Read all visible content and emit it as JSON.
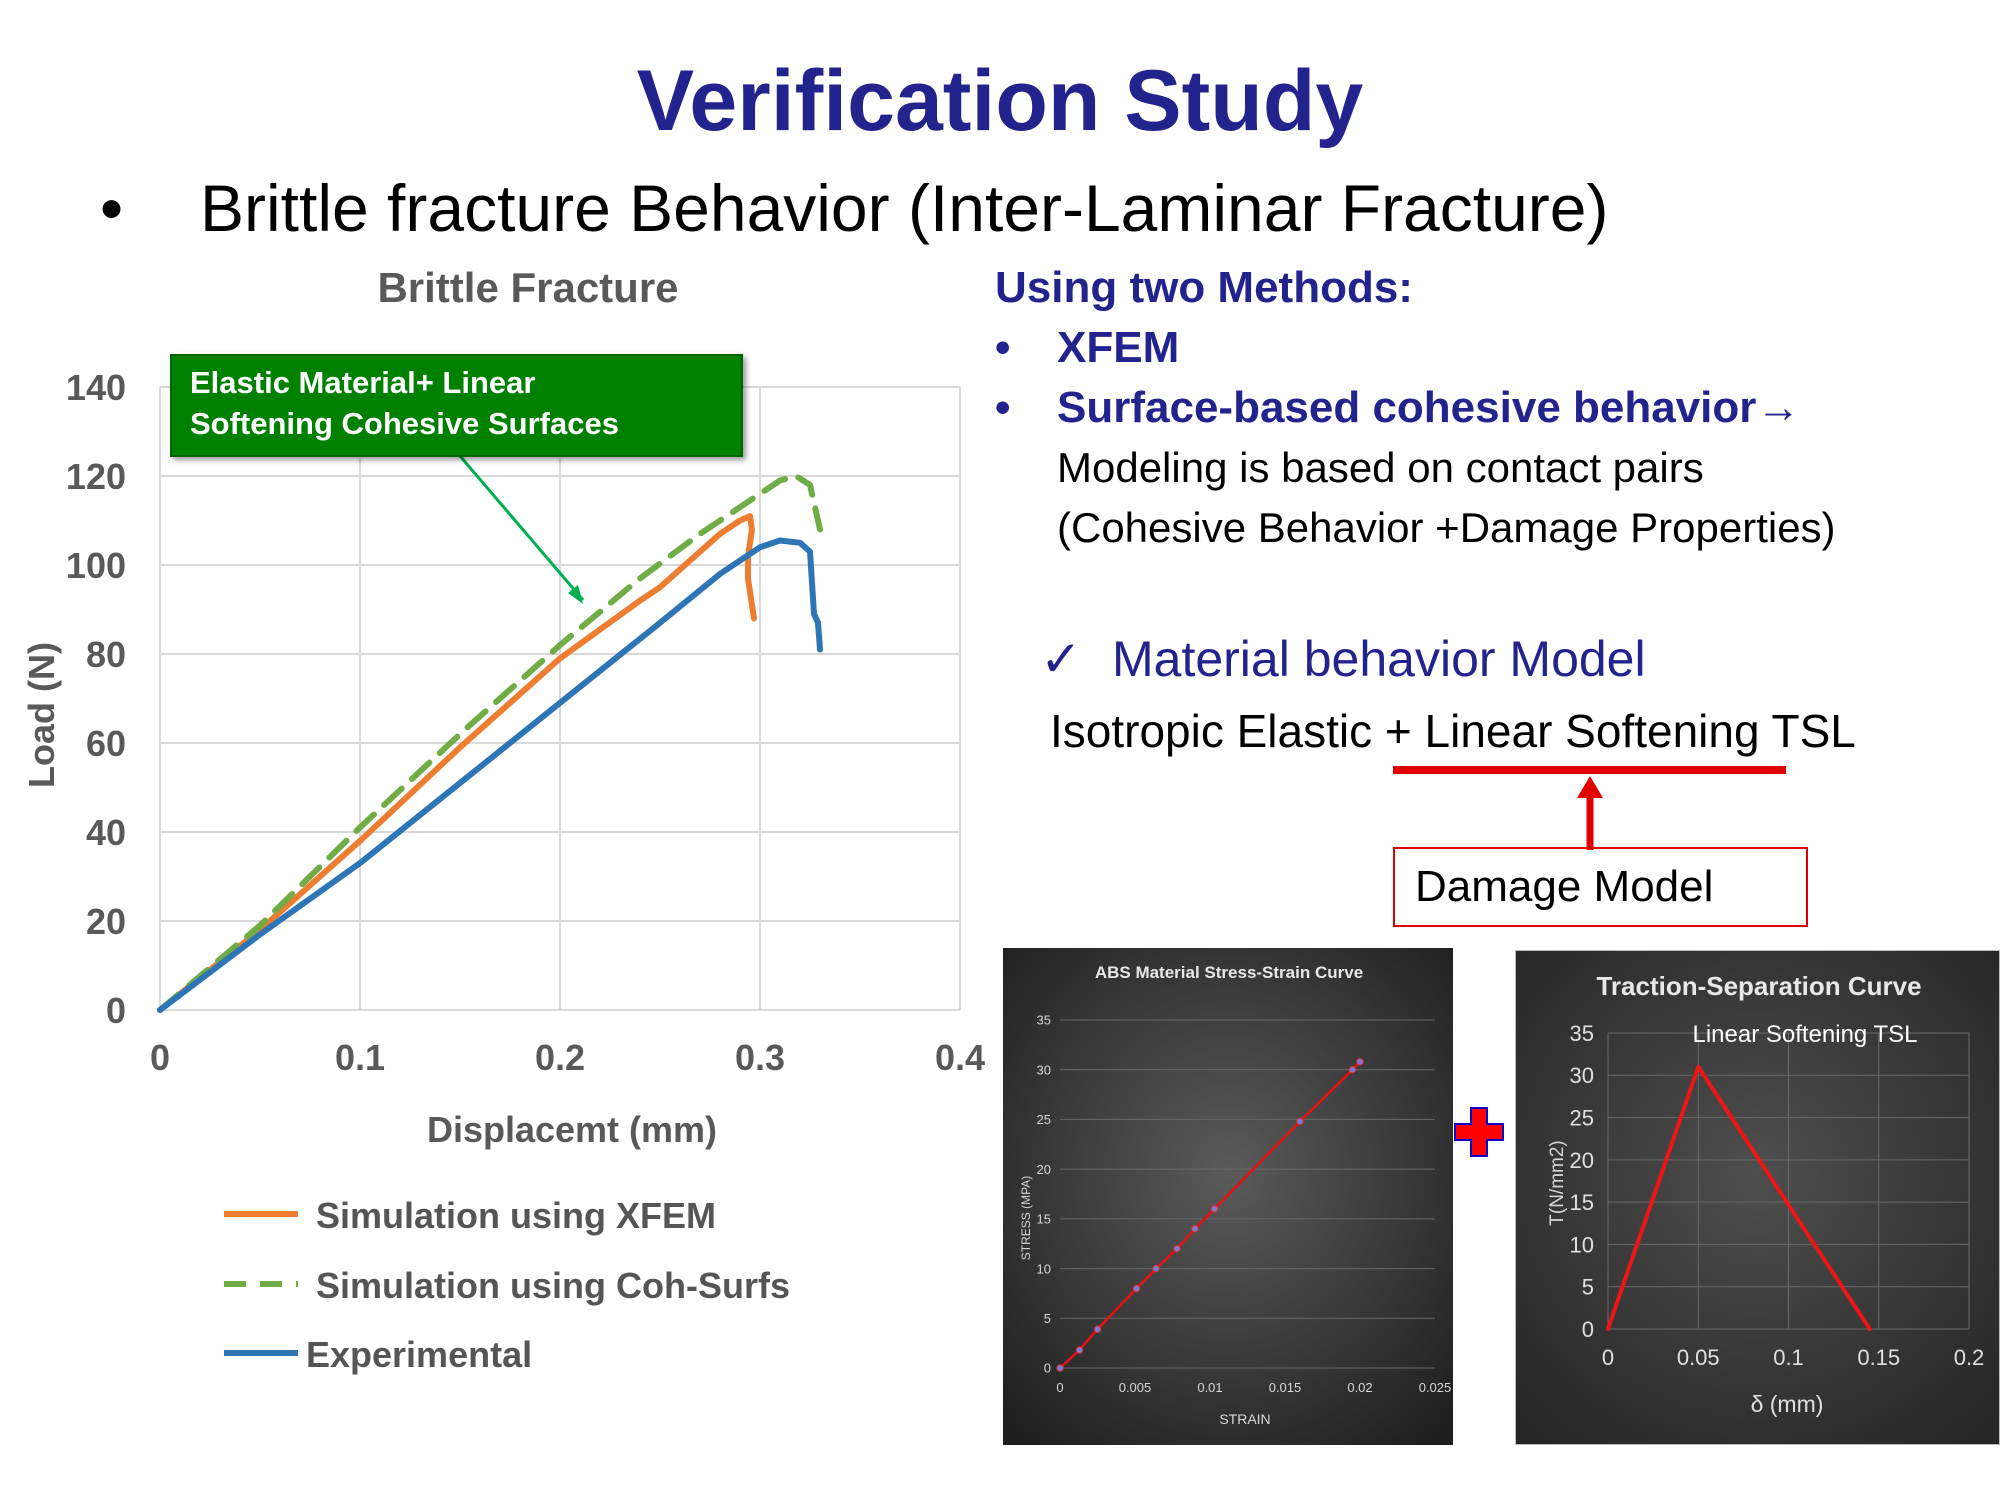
{
  "slide": {
    "title": "Verification Study",
    "bullet": "Brittle fracture Behavior (Inter-Laminar Fracture)",
    "bullet_symbol": "•"
  },
  "methods": {
    "heading": "Using two Methods:",
    "items": [
      "XFEM",
      "Surface-based cohesive behavior→"
    ],
    "detail_lines": [
      "Modeling is based on contact pairs",
      "(Cohesive Behavior +Damage Properties)"
    ]
  },
  "material_model": {
    "check": "✓",
    "title": "Material behavior Model",
    "description": "Isotropic Elastic + Linear Softening TSL",
    "damage_label": "Damage Model",
    "plus_symbol": "+"
  },
  "colors": {
    "title_blue": "#23238e",
    "xfem_orange": "#ed7d31",
    "coh_green": "#70ad47",
    "exp_blue": "#2e75b6",
    "annotation_green": "#008000",
    "red": "#e00000"
  },
  "chart_data": [
    {
      "type": "line",
      "title": "Brittle Fracture",
      "xlabel": "Displacemt (mm)",
      "ylabel": "Load (N)",
      "xlim": [
        0,
        0.4
      ],
      "ylim": [
        0,
        140
      ],
      "x_ticks": [
        "0",
        "0.1",
        "0.2",
        "0.3",
        "0.4"
      ],
      "y_ticks": [
        "0",
        "20",
        "40",
        "60",
        "80",
        "100",
        "120",
        "140"
      ],
      "grid": true,
      "legend_position": "bottom",
      "annotation": "Elastic Material+ Linear Softening Cohesive Surfaces",
      "series": [
        {
          "name": "Simulation using XFEM",
          "style": "solid",
          "points": [
            [
              0,
              0
            ],
            [
              0.05,
              18
            ],
            [
              0.1,
              38
            ],
            [
              0.15,
              59
            ],
            [
              0.2,
              79
            ],
            [
              0.24,
              92
            ],
            [
              0.25,
              95
            ],
            [
              0.28,
              107
            ],
            [
              0.29,
              110
            ],
            [
              0.295,
              111
            ],
            [
              0.296,
              108
            ],
            [
              0.294,
              102
            ],
            [
              0.294,
              97
            ],
            [
              0.297,
              88
            ]
          ]
        },
        {
          "name": "Simulation using Coh-Surfs",
          "style": "dashed",
          "points": [
            [
              0,
              0
            ],
            [
              0.05,
              19
            ],
            [
              0.1,
              41
            ],
            [
              0.15,
              62
            ],
            [
              0.2,
              82
            ],
            [
              0.24,
              97
            ],
            [
              0.27,
              107
            ],
            [
              0.3,
              116
            ],
            [
              0.31,
              119
            ],
            [
              0.318,
              120
            ],
            [
              0.325,
              118
            ],
            [
              0.33,
              108
            ]
          ]
        },
        {
          "name": "Experimental",
          "style": "solid",
          "points": [
            [
              0,
              0
            ],
            [
              0.05,
              17
            ],
            [
              0.1,
              33
            ],
            [
              0.15,
              51
            ],
            [
              0.2,
              69
            ],
            [
              0.25,
              87
            ],
            [
              0.28,
              98
            ],
            [
              0.3,
              104
            ],
            [
              0.31,
              105.5
            ],
            [
              0.32,
              105
            ],
            [
              0.325,
              103
            ],
            [
              0.326,
              96
            ],
            [
              0.327,
              89
            ],
            [
              0.329,
              87
            ],
            [
              0.33,
              81
            ]
          ]
        }
      ]
    },
    {
      "type": "line",
      "title": "ABS Material Stress-Strain Curve",
      "xlabel": "STRAIN",
      "ylabel": "STRESS (MPA)",
      "xlim": [
        0,
        0.025
      ],
      "ylim": [
        0,
        35
      ],
      "x_ticks": [
        "0",
        "0.005",
        "0.01",
        "0.015",
        "0.02",
        "0.025"
      ],
      "y_ticks": [
        "0",
        "5",
        "10",
        "15",
        "20",
        "25",
        "30",
        "35"
      ],
      "series": [
        {
          "points": [
            [
              0,
              0
            ],
            [
              0.0013,
              1.8
            ],
            [
              0.0025,
              3.9
            ],
            [
              0.0051,
              8
            ],
            [
              0.0064,
              10
            ],
            [
              0.0078,
              12
            ],
            [
              0.009,
              14
            ],
            [
              0.0103,
              16
            ],
            [
              0.016,
              24.8
            ],
            [
              0.0195,
              30
            ],
            [
              0.02,
              30.8
            ]
          ]
        }
      ]
    },
    {
      "type": "line",
      "title": "Traction-Separation Curve",
      "subtitle": "Linear Softening TSL",
      "xlabel": "δ (mm)",
      "ylabel": "T(N/mm2)",
      "xlim": [
        0,
        0.2
      ],
      "ylim": [
        0,
        35
      ],
      "x_ticks": [
        "0",
        "0.05",
        "0.1",
        "0.15",
        "0.2"
      ],
      "y_ticks": [
        "0",
        "5",
        "10",
        "15",
        "20",
        "25",
        "30",
        "35"
      ],
      "series": [
        {
          "points": [
            [
              0,
              0
            ],
            [
              0.05,
              31
            ],
            [
              0.145,
              0
            ]
          ]
        }
      ]
    }
  ]
}
